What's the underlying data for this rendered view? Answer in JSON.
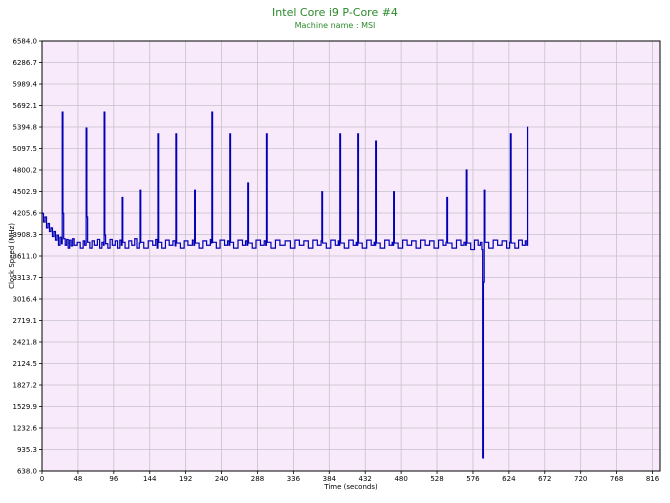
{
  "chart_data": {
    "type": "line",
    "title": "Intel Core i9 P-Core #4",
    "subtitle": "Machine name : MSI",
    "xlabel": "Time (seconds)",
    "ylabel": "Clock Speed (MHz)",
    "xlim": [
      0,
      826
    ],
    "ylim": [
      638.0,
      6584.0
    ],
    "x_ticks": [
      0,
      48,
      96,
      144,
      192,
      240,
      288,
      336,
      384,
      432,
      480,
      528,
      576,
      624,
      672,
      720,
      768,
      816
    ],
    "y_ticks": [
      "638.0",
      "935.3",
      "1232.6",
      "1529.9",
      "1827.2",
      "2124.5",
      "2421.8",
      "2719.1",
      "3016.4",
      "3313.7",
      "3611.0",
      "3908.3",
      "4205.6",
      "4502.9",
      "4800.2",
      "5097.5",
      "5394.8",
      "5692.1",
      "5989.4",
      "6286.7",
      "6584.0"
    ],
    "grid": true,
    "background": "#f8eafa",
    "grid_color": "#c8c0cc",
    "line_color": "#0000b4",
    "baseline_mhz": 3780,
    "series": [
      {
        "values": [
          [
            0,
            4200
          ],
          [
            2,
            4080
          ],
          [
            4,
            4150
          ],
          [
            6,
            4000
          ],
          [
            8,
            4060
          ],
          [
            10,
            3950
          ],
          [
            12,
            4000
          ],
          [
            14,
            3880
          ],
          [
            16,
            3950
          ],
          [
            18,
            3830
          ],
          [
            20,
            3900
          ],
          [
            22,
            3760
          ],
          [
            24,
            3870
          ],
          [
            26,
            3780
          ],
          [
            27,
            5600
          ],
          [
            28,
            4200
          ],
          [
            29,
            3850
          ],
          [
            31,
            3760
          ],
          [
            33,
            3840
          ],
          [
            35,
            3720
          ],
          [
            37,
            3830
          ],
          [
            39,
            3750
          ],
          [
            41,
            3850
          ],
          [
            43,
            3760
          ],
          [
            47,
            3800
          ],
          [
            51,
            3720
          ],
          [
            55,
            3820
          ],
          [
            57,
            3760
          ],
          [
            59,
            5380
          ],
          [
            60,
            4150
          ],
          [
            61,
            3800
          ],
          [
            64,
            3720
          ],
          [
            67,
            3820
          ],
          [
            70,
            3760
          ],
          [
            74,
            3840
          ],
          [
            77,
            3720
          ],
          [
            80,
            3800
          ],
          [
            82,
            3760
          ],
          [
            83,
            5600
          ],
          [
            84,
            3900
          ],
          [
            85,
            3780
          ],
          [
            88,
            3720
          ],
          [
            91,
            3840
          ],
          [
            94,
            3760
          ],
          [
            98,
            3820
          ],
          [
            101,
            3720
          ],
          [
            104,
            3830
          ],
          [
            106,
            3760
          ],
          [
            107,
            4420
          ],
          [
            108,
            3800
          ],
          [
            111,
            3720
          ],
          [
            116,
            3820
          ],
          [
            120,
            3760
          ],
          [
            124,
            3850
          ],
          [
            127,
            3720
          ],
          [
            130,
            3790
          ],
          [
            131,
            4520
          ],
          [
            132,
            3800
          ],
          [
            136,
            3720
          ],
          [
            142,
            3820
          ],
          [
            148,
            3760
          ],
          [
            152,
            3840
          ],
          [
            154,
            3720
          ],
          [
            155,
            5300
          ],
          [
            156,
            3800
          ],
          [
            160,
            3720
          ],
          [
            165,
            3830
          ],
          [
            170,
            3760
          ],
          [
            175,
            3820
          ],
          [
            178,
            3750
          ],
          [
            179,
            5300
          ],
          [
            180,
            3790
          ],
          [
            185,
            3720
          ],
          [
            190,
            3820
          ],
          [
            195,
            3760
          ],
          [
            201,
            3830
          ],
          [
            203,
            3760
          ],
          [
            204,
            4520
          ],
          [
            205,
            3790
          ],
          [
            210,
            3720
          ],
          [
            215,
            3820
          ],
          [
            220,
            3760
          ],
          [
            225,
            3840
          ],
          [
            226,
            3790
          ],
          [
            227,
            5600
          ],
          [
            228,
            3800
          ],
          [
            233,
            3720
          ],
          [
            238,
            3830
          ],
          [
            244,
            3760
          ],
          [
            248,
            3820
          ],
          [
            250,
            3760
          ],
          [
            251,
            5300
          ],
          [
            252,
            3800
          ],
          [
            256,
            3720
          ],
          [
            262,
            3830
          ],
          [
            268,
            3760
          ],
          [
            272,
            3820
          ],
          [
            274,
            3760
          ],
          [
            275,
            4620
          ],
          [
            276,
            3790
          ],
          [
            281,
            3720
          ],
          [
            286,
            3830
          ],
          [
            292,
            3760
          ],
          [
            297,
            3820
          ],
          [
            299,
            3760
          ],
          [
            300,
            5300
          ],
          [
            301,
            3800
          ],
          [
            306,
            3720
          ],
          [
            312,
            3830
          ],
          [
            318,
            3760
          ],
          [
            325,
            3820
          ],
          [
            332,
            3720
          ],
          [
            338,
            3830
          ],
          [
            344,
            3760
          ],
          [
            350,
            3820
          ],
          [
            356,
            3720
          ],
          [
            362,
            3830
          ],
          [
            368,
            3760
          ],
          [
            373,
            3820
          ],
          [
            374,
            4500
          ],
          [
            375,
            3790
          ],
          [
            380,
            3720
          ],
          [
            386,
            3830
          ],
          [
            392,
            3760
          ],
          [
            396,
            3820
          ],
          [
            397,
            3760
          ],
          [
            398,
            5300
          ],
          [
            399,
            3790
          ],
          [
            404,
            3720
          ],
          [
            410,
            3830
          ],
          [
            416,
            3760
          ],
          [
            420,
            3800
          ],
          [
            421,
            3760
          ],
          [
            422,
            5300
          ],
          [
            423,
            3790
          ],
          [
            428,
            3720
          ],
          [
            434,
            3830
          ],
          [
            440,
            3760
          ],
          [
            444,
            3800
          ],
          [
            445,
            3760
          ],
          [
            446,
            5200
          ],
          [
            447,
            3790
          ],
          [
            452,
            3720
          ],
          [
            458,
            3830
          ],
          [
            464,
            3760
          ],
          [
            468,
            3800
          ],
          [
            469,
            3760
          ],
          [
            470,
            4500
          ],
          [
            471,
            3790
          ],
          [
            476,
            3720
          ],
          [
            482,
            3830
          ],
          [
            488,
            3760
          ],
          [
            494,
            3820
          ],
          [
            500,
            3720
          ],
          [
            506,
            3830
          ],
          [
            512,
            3760
          ],
          [
            518,
            3820
          ],
          [
            524,
            3720
          ],
          [
            530,
            3830
          ],
          [
            536,
            3760
          ],
          [
            540,
            3800
          ],
          [
            541,
            4420
          ],
          [
            542,
            3790
          ],
          [
            548,
            3720
          ],
          [
            554,
            3830
          ],
          [
            560,
            3760
          ],
          [
            564,
            3800
          ],
          [
            566,
            3760
          ],
          [
            567,
            4800
          ],
          [
            568,
            3790
          ],
          [
            573,
            3700
          ],
          [
            578,
            3830
          ],
          [
            583,
            3760
          ],
          [
            586,
            3800
          ],
          [
            588,
            3700
          ],
          [
            589,
            820
          ],
          [
            590,
            3250
          ],
          [
            591,
            4520
          ],
          [
            592,
            3800
          ],
          [
            597,
            3720
          ],
          [
            603,
            3830
          ],
          [
            609,
            3760
          ],
          [
            615,
            3820
          ],
          [
            621,
            3720
          ],
          [
            625,
            3800
          ],
          [
            626,
            5300
          ],
          [
            627,
            3790
          ],
          [
            632,
            3720
          ],
          [
            637,
            3830
          ],
          [
            642,
            3760
          ],
          [
            646,
            3820
          ],
          [
            648,
            3760
          ],
          [
            649,
            5400
          ]
        ]
      }
    ]
  }
}
